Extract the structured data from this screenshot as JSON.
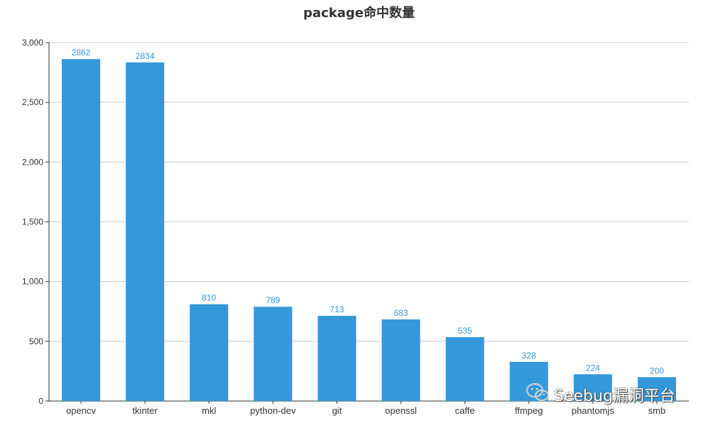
{
  "chart_data": {
    "type": "bar",
    "title": "package命中数量",
    "categories": [
      "opencv",
      "tkinter",
      "mkl",
      "python-dev",
      "git",
      "openssl",
      "caffe",
      "ffmpeg",
      "phantomjs",
      "smb"
    ],
    "values": [
      2862,
      2834,
      810,
      789,
      713,
      683,
      535,
      328,
      224,
      200
    ],
    "xlabel": "",
    "ylabel": "",
    "ylim": [
      0,
      3000
    ],
    "yticks": [
      0,
      500,
      1000,
      1500,
      2000,
      2500,
      3000
    ],
    "ytick_labels": [
      "0",
      "500",
      "1,000",
      "1,500",
      "2,000",
      "2,500",
      "3,000"
    ],
    "grid": true,
    "bar_color": "#3498db",
    "label_color": "#3498db"
  },
  "watermark": {
    "text": "Seebug漏洞平台",
    "icon": "wechat-icon"
  }
}
